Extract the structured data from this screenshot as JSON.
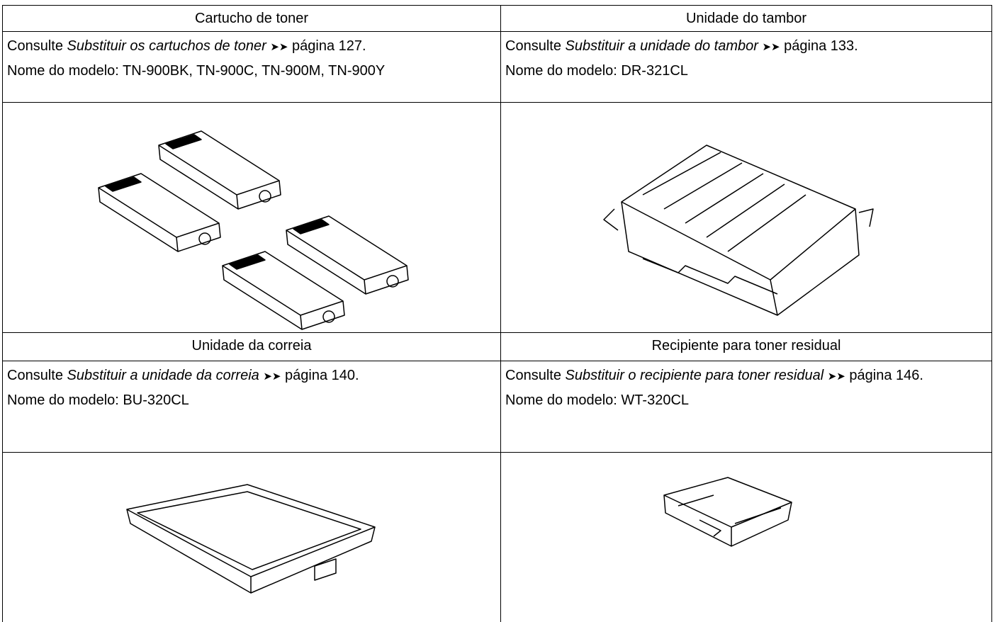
{
  "table": {
    "sections": [
      {
        "cells": [
          {
            "title": "Cartucho de toner",
            "ref": {
              "prefix": "Consulte",
              "link": "Substituir os cartuchos de toner",
              "arrow": "➤➤",
              "page": "página 127."
            },
            "model": "Nome do modelo: TN-900BK, TN-900C, TN-900M, TN-900Y"
          },
          {
            "title": "Unidade do tambor",
            "ref": {
              "prefix": "Consulte",
              "link": "Substituir a unidade do tambor",
              "arrow": "➤➤",
              "page": "página 133."
            },
            "model": "Nome do modelo: DR-321CL"
          }
        ]
      },
      {
        "cells": [
          {
            "title": "Unidade da correia",
            "ref": {
              "prefix": "Consulte",
              "link": "Substituir a unidade da correia",
              "arrow": "➤➤",
              "page": "página 140."
            },
            "model": "Nome do modelo: BU-320CL"
          },
          {
            "title": "Recipiente para toner residual",
            "ref": {
              "prefix": "Consulte",
              "link": "Substituir o recipiente para toner residual",
              "arrow": "➤➤",
              "page": "página 146."
            },
            "model": "Nome do modelo: WT-320CL"
          }
        ]
      }
    ]
  }
}
